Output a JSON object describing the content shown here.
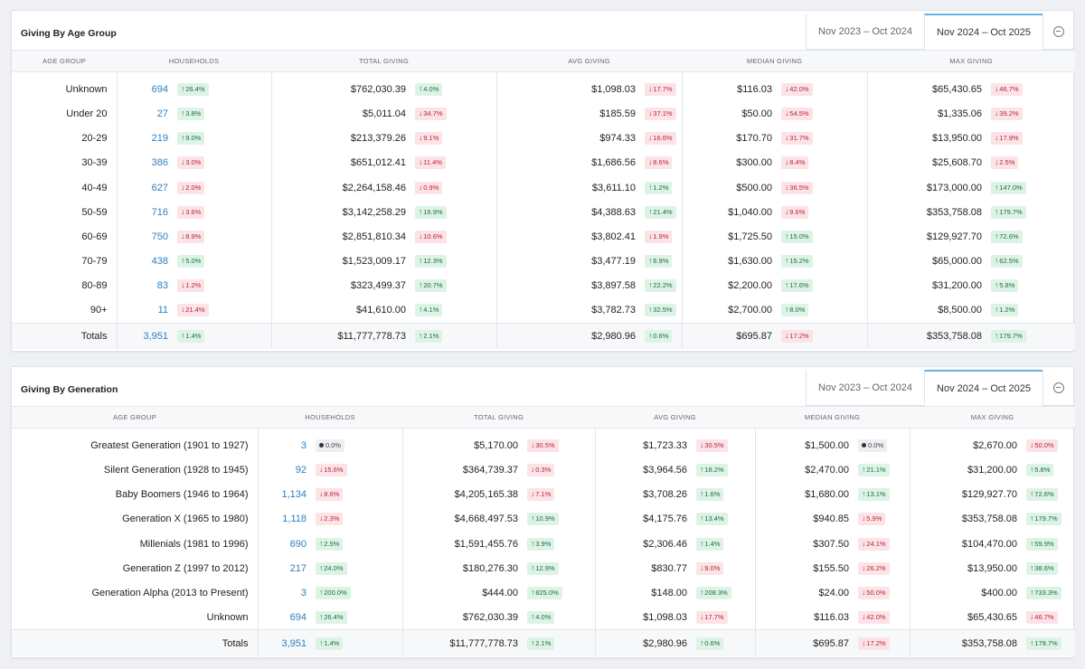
{
  "age_card": {
    "title": "Giving By Age Group",
    "tabs": [
      "Nov 2023 – Oct 2024",
      "Nov 2024 – Oct 2025"
    ],
    "headers": [
      "AGE GROUP",
      "HOUSEHOLDS",
      "TOTAL GIVING",
      "AVG GIVING",
      "MEDIAN GIVING",
      "MAX GIVING"
    ],
    "rows": [
      {
        "label": "Unknown",
        "hh": "694",
        "hh_b": {
          "t": "26.4%",
          "d": "up"
        },
        "tg": "$762,030.39",
        "tg_b": {
          "t": "4.0%",
          "d": "up"
        },
        "ag": "$1,098.03",
        "ag_b": {
          "t": "17.7%",
          "d": "down"
        },
        "mg": "$116.03",
        "mg_b": {
          "t": "42.0%",
          "d": "down"
        },
        "xg": "$65,430.65",
        "xg_b": {
          "t": "46.7%",
          "d": "down"
        }
      },
      {
        "label": "Under 20",
        "hh": "27",
        "hh_b": {
          "t": "3.8%",
          "d": "up"
        },
        "tg": "$5,011.04",
        "tg_b": {
          "t": "34.7%",
          "d": "down"
        },
        "ag": "$185.59",
        "ag_b": {
          "t": "37.1%",
          "d": "down"
        },
        "mg": "$50.00",
        "mg_b": {
          "t": "54.5%",
          "d": "down"
        },
        "xg": "$1,335.06",
        "xg_b": {
          "t": "39.2%",
          "d": "down"
        }
      },
      {
        "label": "20-29",
        "hh": "219",
        "hh_b": {
          "t": "9.0%",
          "d": "up"
        },
        "tg": "$213,379.26",
        "tg_b": {
          "t": "9.1%",
          "d": "down"
        },
        "ag": "$974.33",
        "ag_b": {
          "t": "16.6%",
          "d": "down"
        },
        "mg": "$170.70",
        "mg_b": {
          "t": "31.7%",
          "d": "down"
        },
        "xg": "$13,950.00",
        "xg_b": {
          "t": "17.9%",
          "d": "down"
        }
      },
      {
        "label": "30-39",
        "hh": "386",
        "hh_b": {
          "t": "3.0%",
          "d": "down"
        },
        "tg": "$651,012.41",
        "tg_b": {
          "t": "11.4%",
          "d": "down"
        },
        "ag": "$1,686.56",
        "ag_b": {
          "t": "8.6%",
          "d": "down"
        },
        "mg": "$300.00",
        "mg_b": {
          "t": "8.4%",
          "d": "down"
        },
        "xg": "$25,608.70",
        "xg_b": {
          "t": "2.5%",
          "d": "down"
        }
      },
      {
        "label": "40-49",
        "hh": "627",
        "hh_b": {
          "t": "2.0%",
          "d": "down"
        },
        "tg": "$2,264,158.46",
        "tg_b": {
          "t": "0.9%",
          "d": "down"
        },
        "ag": "$3,611.10",
        "ag_b": {
          "t": "1.2%",
          "d": "up"
        },
        "mg": "$500.00",
        "mg_b": {
          "t": "36.5%",
          "d": "down"
        },
        "xg": "$173,000.00",
        "xg_b": {
          "t": "147.0%",
          "d": "up"
        }
      },
      {
        "label": "50-59",
        "hh": "716",
        "hh_b": {
          "t": "3.6%",
          "d": "down"
        },
        "tg": "$3,142,258.29",
        "tg_b": {
          "t": "16.9%",
          "d": "up"
        },
        "ag": "$4,388.63",
        "ag_b": {
          "t": "21.4%",
          "d": "up"
        },
        "mg": "$1,040.00",
        "mg_b": {
          "t": "9.6%",
          "d": "down"
        },
        "xg": "$353,758.08",
        "xg_b": {
          "t": "179.7%",
          "d": "up"
        }
      },
      {
        "label": "60-69",
        "hh": "750",
        "hh_b": {
          "t": "8.9%",
          "d": "down"
        },
        "tg": "$2,851,810.34",
        "tg_b": {
          "t": "10.6%",
          "d": "down"
        },
        "ag": "$3,802.41",
        "ag_b": {
          "t": "1.9%",
          "d": "down"
        },
        "mg": "$1,725.50",
        "mg_b": {
          "t": "15.0%",
          "d": "up"
        },
        "xg": "$129,927.70",
        "xg_b": {
          "t": "72.6%",
          "d": "up"
        }
      },
      {
        "label": "70-79",
        "hh": "438",
        "hh_b": {
          "t": "5.0%",
          "d": "up"
        },
        "tg": "$1,523,009.17",
        "tg_b": {
          "t": "12.3%",
          "d": "up"
        },
        "ag": "$3,477.19",
        "ag_b": {
          "t": "6.9%",
          "d": "up"
        },
        "mg": "$1,630.00",
        "mg_b": {
          "t": "15.2%",
          "d": "up"
        },
        "xg": "$65,000.00",
        "xg_b": {
          "t": "62.5%",
          "d": "up"
        }
      },
      {
        "label": "80-89",
        "hh": "83",
        "hh_b": {
          "t": "1.2%",
          "d": "down"
        },
        "tg": "$323,499.37",
        "tg_b": {
          "t": "20.7%",
          "d": "up"
        },
        "ag": "$3,897.58",
        "ag_b": {
          "t": "22.2%",
          "d": "up"
        },
        "mg": "$2,200.00",
        "mg_b": {
          "t": "17.6%",
          "d": "up"
        },
        "xg": "$31,200.00",
        "xg_b": {
          "t": "5.8%",
          "d": "up"
        }
      },
      {
        "label": "90+",
        "hh": "11",
        "hh_b": {
          "t": "21.4%",
          "d": "down"
        },
        "tg": "$41,610.00",
        "tg_b": {
          "t": "4.1%",
          "d": "up"
        },
        "ag": "$3,782.73",
        "ag_b": {
          "t": "32.5%",
          "d": "up"
        },
        "mg": "$2,700.00",
        "mg_b": {
          "t": "8.0%",
          "d": "up"
        },
        "xg": "$8,500.00",
        "xg_b": {
          "t": "1.2%",
          "d": "up"
        }
      }
    ],
    "totals": {
      "label": "Totals",
      "hh": "3,951",
      "hh_b": {
        "t": "1.4%",
        "d": "up"
      },
      "tg": "$11,777,778.73",
      "tg_b": {
        "t": "2.1%",
        "d": "up"
      },
      "ag": "$2,980.96",
      "ag_b": {
        "t": "0.6%",
        "d": "up"
      },
      "mg": "$695.87",
      "mg_b": {
        "t": "17.2%",
        "d": "down"
      },
      "xg": "$353,758.08",
      "xg_b": {
        "t": "179.7%",
        "d": "up"
      }
    }
  },
  "gen_card": {
    "title": "Giving By Generation",
    "tabs": [
      "Nov 2023 – Oct 2024",
      "Nov 2024 – Oct 2025"
    ],
    "headers": [
      "AGE GROUP",
      "HOUSEHOLDS",
      "TOTAL GIVING",
      "AVG GIVING",
      "MEDIAN GIVING",
      "MAX GIVING"
    ],
    "rows": [
      {
        "label": "Greatest Generation (1901 to 1927)",
        "hh": "3",
        "hh_b": {
          "t": "0.0%",
          "d": "flat"
        },
        "tg": "$5,170.00",
        "tg_b": {
          "t": "30.5%",
          "d": "down"
        },
        "ag": "$1,723.33",
        "ag_b": {
          "t": "30.5%",
          "d": "down"
        },
        "mg": "$1,500.00",
        "mg_b": {
          "t": "0.0%",
          "d": "flat"
        },
        "xg": "$2,670.00",
        "xg_b": {
          "t": "50.0%",
          "d": "down"
        }
      },
      {
        "label": "Silent Generation (1928 to 1945)",
        "hh": "92",
        "hh_b": {
          "t": "15.6%",
          "d": "down"
        },
        "tg": "$364,739.37",
        "tg_b": {
          "t": "0.3%",
          "d": "down"
        },
        "ag": "$3,964.56",
        "ag_b": {
          "t": "18.2%",
          "d": "up"
        },
        "mg": "$2,470.00",
        "mg_b": {
          "t": "21.1%",
          "d": "up"
        },
        "xg": "$31,200.00",
        "xg_b": {
          "t": "5.8%",
          "d": "up"
        }
      },
      {
        "label": "Baby Boomers (1946 to 1964)",
        "hh": "1,134",
        "hh_b": {
          "t": "8.6%",
          "d": "down"
        },
        "tg": "$4,205,165.38",
        "tg_b": {
          "t": "7.1%",
          "d": "down"
        },
        "ag": "$3,708.26",
        "ag_b": {
          "t": "1.6%",
          "d": "up"
        },
        "mg": "$1,680.00",
        "mg_b": {
          "t": "13.1%",
          "d": "up"
        },
        "xg": "$129,927.70",
        "xg_b": {
          "t": "72.6%",
          "d": "up"
        }
      },
      {
        "label": "Generation X (1965 to 1980)",
        "hh": "1,118",
        "hh_b": {
          "t": "2.3%",
          "d": "down"
        },
        "tg": "$4,668,497.53",
        "tg_b": {
          "t": "10.9%",
          "d": "up"
        },
        "ag": "$4,175.76",
        "ag_b": {
          "t": "13.4%",
          "d": "up"
        },
        "mg": "$940.85",
        "mg_b": {
          "t": "5.9%",
          "d": "down"
        },
        "xg": "$353,758.08",
        "xg_b": {
          "t": "179.7%",
          "d": "up"
        }
      },
      {
        "label": "Millenials (1981 to 1996)",
        "hh": "690",
        "hh_b": {
          "t": "2.5%",
          "d": "up"
        },
        "tg": "$1,591,455.76",
        "tg_b": {
          "t": "3.9%",
          "d": "up"
        },
        "ag": "$2,306.46",
        "ag_b": {
          "t": "1.4%",
          "d": "up"
        },
        "mg": "$307.50",
        "mg_b": {
          "t": "24.1%",
          "d": "down"
        },
        "xg": "$104,470.00",
        "xg_b": {
          "t": "59.9%",
          "d": "up"
        }
      },
      {
        "label": "Generation Z (1997 to 2012)",
        "hh": "217",
        "hh_b": {
          "t": "24.0%",
          "d": "up"
        },
        "tg": "$180,276.30",
        "tg_b": {
          "t": "12.9%",
          "d": "up"
        },
        "ag": "$830.77",
        "ag_b": {
          "t": "9.0%",
          "d": "down"
        },
        "mg": "$155.50",
        "mg_b": {
          "t": "26.2%",
          "d": "down"
        },
        "xg": "$13,950.00",
        "xg_b": {
          "t": "38.6%",
          "d": "up"
        }
      },
      {
        "label": "Generation Alpha (2013 to Present)",
        "hh": "3",
        "hh_b": {
          "t": "200.0%",
          "d": "up"
        },
        "tg": "$444.00",
        "tg_b": {
          "t": "825.0%",
          "d": "up"
        },
        "ag": "$148.00",
        "ag_b": {
          "t": "208.3%",
          "d": "up"
        },
        "mg": "$24.00",
        "mg_b": {
          "t": "50.0%",
          "d": "down"
        },
        "xg": "$400.00",
        "xg_b": {
          "t": "733.3%",
          "d": "up"
        }
      },
      {
        "label": "Unknown",
        "hh": "694",
        "hh_b": {
          "t": "26.4%",
          "d": "up"
        },
        "tg": "$762,030.39",
        "tg_b": {
          "t": "4.0%",
          "d": "up"
        },
        "ag": "$1,098.03",
        "ag_b": {
          "t": "17.7%",
          "d": "down"
        },
        "mg": "$116.03",
        "mg_b": {
          "t": "42.0%",
          "d": "down"
        },
        "xg": "$65,430.65",
        "xg_b": {
          "t": "46.7%",
          "d": "down"
        }
      }
    ],
    "totals": {
      "label": "Totals",
      "hh": "3,951",
      "hh_b": {
        "t": "1.4%",
        "d": "up"
      },
      "tg": "$11,777,778.73",
      "tg_b": {
        "t": "2.1%",
        "d": "up"
      },
      "ag": "$2,980.96",
      "ag_b": {
        "t": "0.6%",
        "d": "up"
      },
      "mg": "$695.87",
      "mg_b": {
        "t": "17.2%",
        "d": "down"
      },
      "xg": "$353,758.08",
      "xg_b": {
        "t": "179.7%",
        "d": "up"
      }
    }
  }
}
